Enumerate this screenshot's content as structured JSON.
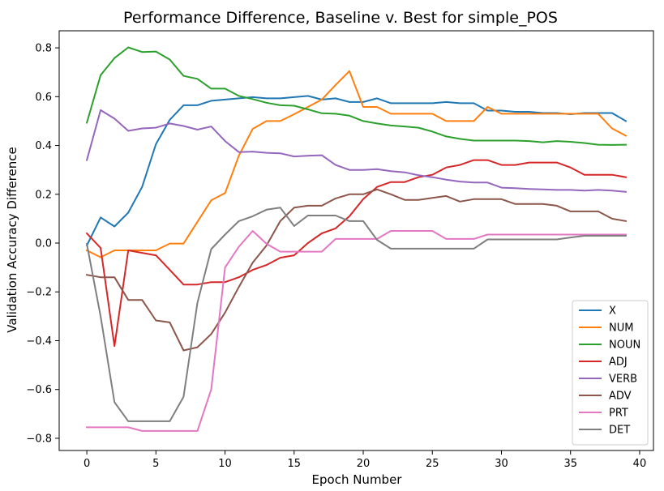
{
  "chart_data": {
    "type": "line",
    "title": "Performance Difference, Baseline v. Best for simple_POS",
    "xlabel": "Epoch Number",
    "ylabel": "Validation Accuracy Difference",
    "xlim": [
      -2,
      41
    ],
    "ylim": [
      -0.85,
      0.87
    ],
    "xticks": [
      0,
      5,
      10,
      15,
      20,
      25,
      30,
      35,
      40
    ],
    "yticks": [
      -0.8,
      -0.6,
      -0.4,
      -0.2,
      0.0,
      0.2,
      0.4,
      0.6,
      0.8
    ],
    "ytick_labels": [
      "−0.8",
      "−0.6",
      "−0.4",
      "−0.2",
      "0.0",
      "0.2",
      "0.4",
      "0.6",
      "0.8"
    ],
    "grid": false,
    "legend_position": "lower-right",
    "x": [
      0,
      1,
      2,
      3,
      4,
      5,
      6,
      7,
      8,
      9,
      10,
      11,
      12,
      13,
      14,
      15,
      16,
      17,
      18,
      19,
      20,
      21,
      22,
      23,
      24,
      25,
      26,
      27,
      28,
      29,
      30,
      31,
      32,
      33,
      34,
      35,
      36,
      37,
      38,
      39
    ],
    "series": [
      {
        "name": "X",
        "color": "#1f77b4",
        "values": [
          -0.01,
          0.105,
          0.068,
          0.125,
          0.23,
          0.405,
          0.505,
          0.565,
          0.565,
          0.583,
          0.588,
          0.593,
          0.598,
          0.593,
          0.593,
          0.598,
          0.603,
          0.588,
          0.593,
          0.578,
          0.578,
          0.593,
          0.573,
          0.573,
          0.573,
          0.573,
          0.578,
          0.573,
          0.573,
          0.543,
          0.543,
          0.538,
          0.538,
          0.533,
          0.533,
          0.528,
          0.533,
          0.533,
          0.533,
          0.5
        ]
      },
      {
        "name": "NUM",
        "color": "#ff7f0e",
        "values": [
          -0.03,
          -0.058,
          -0.03,
          -0.03,
          -0.03,
          -0.03,
          -0.002,
          -0.002,
          0.087,
          0.175,
          0.205,
          0.358,
          0.468,
          0.5,
          0.5,
          0.528,
          0.558,
          0.588,
          0.648,
          0.705,
          0.558,
          0.558,
          0.53,
          0.53,
          0.53,
          0.53,
          0.5,
          0.5,
          0.5,
          0.558,
          0.53,
          0.53,
          0.53,
          0.53,
          0.53,
          0.53,
          0.53,
          0.53,
          0.47,
          0.44
        ]
      },
      {
        "name": "NOUN",
        "color": "#2ca02c",
        "values": [
          0.493,
          0.688,
          0.758,
          0.802,
          0.783,
          0.785,
          0.752,
          0.685,
          0.673,
          0.633,
          0.633,
          0.603,
          0.59,
          0.575,
          0.565,
          0.563,
          0.548,
          0.532,
          0.53,
          0.522,
          0.5,
          0.49,
          0.482,
          0.478,
          0.473,
          0.457,
          0.437,
          0.427,
          0.42,
          0.42,
          0.42,
          0.42,
          0.418,
          0.413,
          0.418,
          0.415,
          0.41,
          0.403,
          0.402,
          0.403
        ]
      },
      {
        "name": "ADJ",
        "color": "#d62728",
        "values": [
          0.04,
          -0.02,
          -0.422,
          -0.03,
          -0.04,
          -0.05,
          -0.11,
          -0.17,
          -0.17,
          -0.16,
          -0.16,
          -0.14,
          -0.11,
          -0.09,
          -0.06,
          -0.05,
          0.0,
          0.04,
          0.06,
          0.11,
          0.18,
          0.23,
          0.25,
          0.25,
          0.27,
          0.28,
          0.31,
          0.32,
          0.34,
          0.34,
          0.32,
          0.32,
          0.33,
          0.33,
          0.33,
          0.31,
          0.28,
          0.28,
          0.28,
          0.27
        ]
      },
      {
        "name": "VERB",
        "color": "#9467bd",
        "values": [
          0.34,
          0.545,
          0.51,
          0.46,
          0.47,
          0.473,
          0.49,
          0.48,
          0.465,
          0.478,
          0.418,
          0.373,
          0.375,
          0.37,
          0.368,
          0.355,
          0.358,
          0.36,
          0.32,
          0.3,
          0.3,
          0.303,
          0.295,
          0.29,
          0.278,
          0.27,
          0.26,
          0.252,
          0.248,
          0.248,
          0.227,
          0.225,
          0.222,
          0.22,
          0.218,
          0.218,
          0.215,
          0.218,
          0.215,
          0.21
        ]
      },
      {
        "name": "ADV",
        "color": "#8c564b",
        "values": [
          -0.13,
          -0.14,
          -0.14,
          -0.233,
          -0.233,
          -0.317,
          -0.325,
          -0.44,
          -0.427,
          -0.373,
          -0.285,
          -0.18,
          -0.08,
          -0.01,
          0.09,
          0.145,
          0.153,
          0.153,
          0.183,
          0.2,
          0.2,
          0.22,
          0.2,
          0.177,
          0.177,
          0.185,
          0.193,
          0.17,
          0.18,
          0.18,
          0.18,
          0.16,
          0.16,
          0.16,
          0.153,
          0.13,
          0.13,
          0.13,
          0.1,
          0.09
        ]
      },
      {
        "name": "PRT",
        "color": "#e377c2",
        "values": [
          -0.755,
          -0.755,
          -0.755,
          -0.755,
          -0.77,
          -0.77,
          -0.77,
          -0.77,
          -0.77,
          -0.6,
          -0.1,
          -0.015,
          0.05,
          -0.003,
          -0.035,
          -0.035,
          -0.035,
          -0.035,
          0.017,
          0.017,
          0.017,
          0.017,
          0.05,
          0.05,
          0.05,
          0.05,
          0.017,
          0.017,
          0.017,
          0.035,
          0.035,
          0.035,
          0.035,
          0.035,
          0.035,
          0.035,
          0.035,
          0.035,
          0.035,
          0.035
        ]
      },
      {
        "name": "DET",
        "color": "#7f7f7f",
        "values": [
          -0.003,
          -0.3,
          -0.652,
          -0.73,
          -0.73,
          -0.73,
          -0.73,
          -0.63,
          -0.245,
          -0.025,
          0.035,
          0.09,
          0.11,
          0.137,
          0.145,
          0.07,
          0.113,
          0.113,
          0.113,
          0.09,
          0.09,
          0.013,
          -0.023,
          -0.023,
          -0.023,
          -0.023,
          -0.023,
          -0.023,
          -0.023,
          0.015,
          0.015,
          0.015,
          0.015,
          0.015,
          0.015,
          0.023,
          0.03,
          0.03,
          0.03,
          0.03
        ]
      }
    ]
  }
}
